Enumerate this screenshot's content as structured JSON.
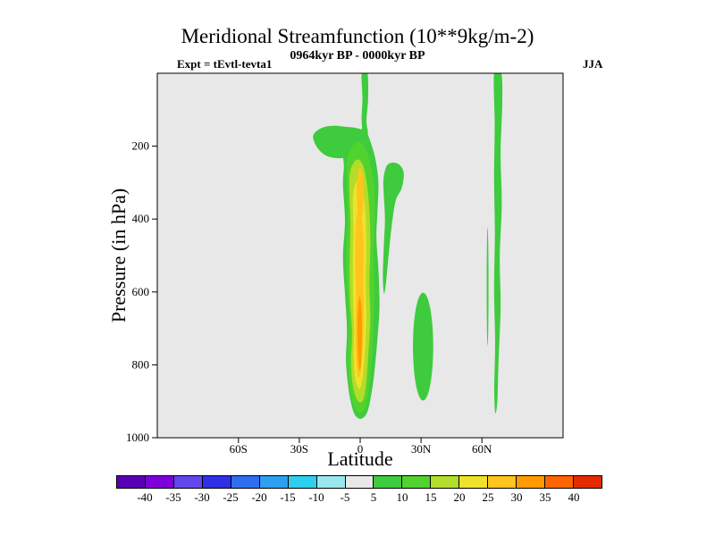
{
  "header": {
    "title": "Meridional Streamfunction (10**9kg/m-2)",
    "subtitle": "0964kyr BP - 0000kyr BP",
    "experiment_label": "Expt = tEvtl-tevta1",
    "season_label": "JJA"
  },
  "axes": {
    "x_label": "Latitude",
    "y_label": "Pressure (in hPa)",
    "x_range": [
      -100,
      100
    ],
    "y_range": [
      0,
      1000
    ],
    "x_ticks": [
      {
        "value": -60,
        "label": "60S"
      },
      {
        "value": -30,
        "label": "30S"
      },
      {
        "value": 0,
        "label": "0"
      },
      {
        "value": 30,
        "label": "30N"
      },
      {
        "value": 60,
        "label": "60N"
      }
    ],
    "y_ticks": [
      {
        "value": 200,
        "label": "200"
      },
      {
        "value": 400,
        "label": "400"
      },
      {
        "value": 600,
        "label": "600"
      },
      {
        "value": 800,
        "label": "800"
      },
      {
        "value": 1000,
        "label": "1000"
      }
    ]
  },
  "chart_data": {
    "type": "contour",
    "title": "Meridional Streamfunction (10**9kg/m-2)",
    "subtitle": "0964kyr BP - 0000kyr BP",
    "season": "JJA",
    "experiment": "Expt = tEvtl-tevta1",
    "units": "10**9 kg/m-2",
    "xlabel": "Latitude",
    "ylabel": "Pressure (in hPa)",
    "xlim": [
      -100,
      100
    ],
    "ylim": [
      0,
      1000
    ],
    "contour_interval": 5,
    "levels": [
      -40,
      -35,
      -30,
      -25,
      -20,
      -15,
      -10,
      -5,
      5,
      10,
      15,
      20,
      25,
      30,
      35,
      40
    ],
    "level_colors": [
      "#5a00b4",
      "#7d00dc",
      "#6246ee",
      "#2f2fe8",
      "#2e6ef0",
      "#2ea0f0",
      "#2ecef0",
      "#98e8ee",
      "#e8e8e8",
      "#3ecb3e",
      "#52d22e",
      "#b2dd2a",
      "#f0e22a",
      "#ffc41e",
      "#ff9b00",
      "#ff6400",
      "#e62a00"
    ],
    "background_color": "#e8e8e8",
    "features": [
      {
        "name": "tropical-column",
        "level": 5,
        "type": "polygon",
        "points": [
          [
            -8.5,
            215
          ],
          [
            -6,
            185
          ],
          [
            -3,
            172
          ],
          [
            -1,
            168
          ],
          [
            1.5,
            148
          ],
          [
            3.5,
            165
          ],
          [
            5.5,
            195
          ],
          [
            7.5,
            235
          ],
          [
            9,
            300
          ],
          [
            8.5,
            380
          ],
          [
            8,
            450
          ],
          [
            9,
            540
          ],
          [
            9.5,
            640
          ],
          [
            8.5,
            730
          ],
          [
            7,
            820
          ],
          [
            5.5,
            880
          ],
          [
            3.5,
            930
          ],
          [
            0.5,
            948
          ],
          [
            -2.5,
            938
          ],
          [
            -4.5,
            905
          ],
          [
            -6,
            855
          ],
          [
            -7,
            785
          ],
          [
            -6.5,
            705
          ],
          [
            -7.5,
            605
          ],
          [
            -8.5,
            505
          ],
          [
            -7.5,
            405
          ],
          [
            -8.5,
            305
          ],
          [
            -8,
            255
          ]
        ]
      },
      {
        "name": "upper-arm-200hPa",
        "level": 5,
        "type": "polygon",
        "points": [
          [
            -23,
            168
          ],
          [
            -19,
            150
          ],
          [
            -13,
            144
          ],
          [
            -7,
            147
          ],
          [
            -2,
            150
          ],
          [
            1,
            158
          ],
          [
            2.5,
            185
          ],
          [
            0.5,
            215
          ],
          [
            -4,
            228
          ],
          [
            -10,
            233
          ],
          [
            -16,
            228
          ],
          [
            -20,
            212
          ],
          [
            -22.5,
            190
          ]
        ]
      },
      {
        "name": "top-spike-equator",
        "level": 5,
        "type": "polygon",
        "points": [
          [
            0.8,
            0
          ],
          [
            3.6,
            0
          ],
          [
            3.9,
            70
          ],
          [
            3.1,
            130
          ],
          [
            3.8,
            165
          ],
          [
            1.8,
            178
          ],
          [
            0.7,
            130
          ],
          [
            1.1,
            70
          ]
        ]
      },
      {
        "name": "right-lobe-15N",
        "level": 5,
        "type": "polygon",
        "points": [
          [
            11.5,
            290
          ],
          [
            13,
            255
          ],
          [
            16,
            245
          ],
          [
            19.5,
            252
          ],
          [
            21.5,
            275
          ],
          [
            20.5,
            315
          ],
          [
            17.5,
            350
          ],
          [
            15.5,
            420
          ],
          [
            14,
            500
          ],
          [
            12.8,
            570
          ],
          [
            11.8,
            605
          ],
          [
            11.2,
            560
          ],
          [
            11.6,
            480
          ],
          [
            12.2,
            400
          ],
          [
            11.6,
            330
          ]
        ]
      },
      {
        "name": "cell-30N",
        "level": 5,
        "type": "ellipse",
        "cx": 31,
        "cy": 750,
        "rx": 5,
        "ry": 148
      },
      {
        "name": "stripe-67N",
        "level": 5,
        "type": "polygon",
        "points": [
          [
            66,
            0
          ],
          [
            69.6,
            0
          ],
          [
            70,
            90
          ],
          [
            69.2,
            220
          ],
          [
            69.8,
            360
          ],
          [
            68.8,
            500
          ],
          [
            69.2,
            640
          ],
          [
            68.2,
            790
          ],
          [
            67.6,
            900
          ],
          [
            66.6,
            932
          ],
          [
            66.1,
            870
          ],
          [
            66.5,
            740
          ],
          [
            66,
            590
          ],
          [
            66.4,
            440
          ],
          [
            66,
            290
          ],
          [
            66.3,
            140
          ]
        ]
      },
      {
        "name": "sliver-62N",
        "level": 5,
        "type": "ellipse",
        "cx": 62.8,
        "cy": 585,
        "rx": 0.45,
        "ry": 162
      },
      {
        "name": "column-inner-10",
        "level": 10,
        "type": "polygon",
        "points": [
          [
            -6.5,
            235
          ],
          [
            -3.5,
            198
          ],
          [
            -0.5,
            188
          ],
          [
            2.5,
            205
          ],
          [
            4.8,
            245
          ],
          [
            6.8,
            305
          ],
          [
            7.2,
            400
          ],
          [
            6.5,
            500
          ],
          [
            7,
            600
          ],
          [
            6.5,
            700
          ],
          [
            5.5,
            800
          ],
          [
            4,
            880
          ],
          [
            2,
            925
          ],
          [
            -1,
            930
          ],
          [
            -4,
            898
          ],
          [
            -5.5,
            840
          ],
          [
            -6,
            762
          ],
          [
            -5.5,
            682
          ],
          [
            -6.5,
            582
          ],
          [
            -6.8,
            482
          ],
          [
            -6,
            382
          ],
          [
            -6.6,
            302
          ]
        ]
      },
      {
        "name": "column-inner-15",
        "level": 15,
        "type": "polygon",
        "points": [
          [
            -5,
            272
          ],
          [
            -2,
            238
          ],
          [
            1,
            248
          ],
          [
            3,
            292
          ],
          [
            4.5,
            372
          ],
          [
            5,
            472
          ],
          [
            4.5,
            572
          ],
          [
            5,
            672
          ],
          [
            4,
            772
          ],
          [
            3,
            852
          ],
          [
            1.5,
            896
          ],
          [
            -1,
            900
          ],
          [
            -3.5,
            862
          ],
          [
            -4.5,
            792
          ],
          [
            -4,
            712
          ],
          [
            -5,
            622
          ],
          [
            -5.2,
            522
          ],
          [
            -4.8,
            422
          ],
          [
            -5.2,
            342
          ]
        ]
      },
      {
        "name": "column-inner-20",
        "level": 20,
        "type": "polygon",
        "points": [
          [
            -3.5,
            332
          ],
          [
            -1,
            292
          ],
          [
            1,
            308
          ],
          [
            2.5,
            382
          ],
          [
            3,
            472
          ],
          [
            2.7,
            572
          ],
          [
            3,
            672
          ],
          [
            2.2,
            772
          ],
          [
            1,
            842
          ],
          [
            -0.5,
            866
          ],
          [
            -2.5,
            836
          ],
          [
            -3.2,
            772
          ],
          [
            -3,
            702
          ],
          [
            -3.5,
            612
          ],
          [
            -3.6,
            512
          ],
          [
            -3.3,
            422
          ]
        ]
      },
      {
        "name": "column-inner-25",
        "level": 25,
        "type": "polygon",
        "points": [
          [
            -2.2,
            422
          ],
          [
            -0.8,
            372
          ],
          [
            0.8,
            402
          ],
          [
            1.7,
            482
          ],
          [
            1.5,
            572
          ],
          [
            1.8,
            662
          ],
          [
            1.2,
            752
          ],
          [
            0.2,
            822
          ],
          [
            -1.2,
            832
          ],
          [
            -2,
            782
          ],
          [
            -2.3,
            702
          ],
          [
            -2,
            622
          ],
          [
            -2.4,
            532
          ]
        ]
      },
      {
        "name": "upper-core-25",
        "level": 25,
        "type": "ellipse",
        "cx": 0,
        "cy": 330,
        "rx": 1.7,
        "ry": 72
      },
      {
        "name": "core-30",
        "level": 30,
        "type": "polygon",
        "points": [
          [
            -1.2,
            652
          ],
          [
            -0.2,
            612
          ],
          [
            0.7,
            652
          ],
          [
            0.9,
            722
          ],
          [
            0.5,
            792
          ],
          [
            -0.3,
            816
          ],
          [
            -1,
            782
          ],
          [
            -1.3,
            722
          ]
        ]
      }
    ]
  },
  "colorbar": {
    "labels": [
      "-40",
      "-35",
      "-30",
      "-25",
      "-20",
      "-15",
      "-10",
      "-5",
      "5",
      "10",
      "15",
      "20",
      "25",
      "30",
      "35",
      "40"
    ]
  }
}
